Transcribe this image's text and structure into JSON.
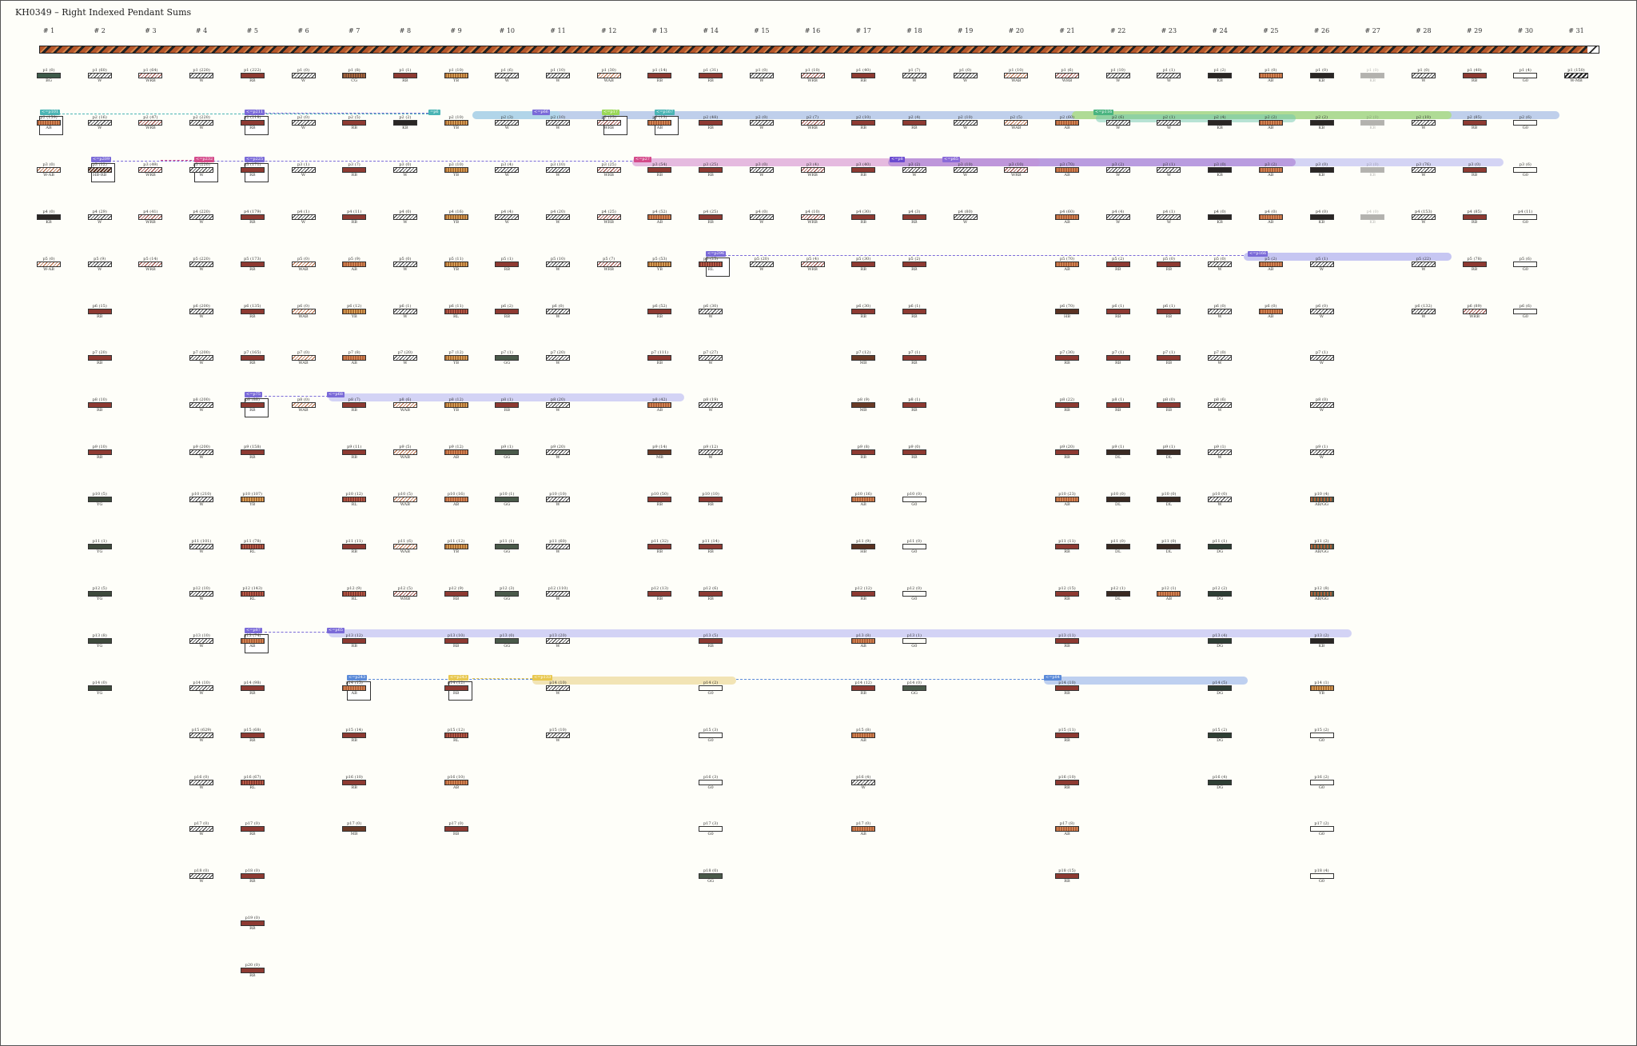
{
  "title": "KH0349 – Right Indexed Pendant Sums",
  "columns": [
    "# 1",
    "# 2",
    "# 3",
    "# 4",
    "# 5",
    "# 6",
    "# 7",
    "# 8",
    "# 9",
    "# 10",
    "# 11",
    "# 12",
    "# 13",
    "# 14",
    "# 15",
    "# 16",
    "# 17",
    "# 18",
    "# 19",
    "# 20",
    "# 21",
    "# 22",
    "# 23",
    "# 24",
    "# 25",
    "# 26",
    "# 27",
    "# 28",
    "# 29",
    "# 30",
    "# 31"
  ],
  "colors": {
    "main_cord": "#b4562a",
    "link_purple": "#7a6ad8",
    "link_pink": "#d44a8a",
    "link_teal": "#4ab4b4",
    "link_blue": "#5a8ad8",
    "link_green": "#9ad858",
    "link_gold": "#e8c850"
  },
  "subsidiary_tags": [
    {
      "text": "<=p101",
      "color": "#4ab4b4"
    },
    {
      "text": "<=p211",
      "color": "#7a6ad8"
    },
    {
      "text": "=p6",
      "color": "#4ab4b4"
    },
    {
      "text": "<=p66",
      "color": "#7a6ad8"
    },
    {
      "text": "<=p17",
      "color": "#9ad858"
    },
    {
      "text": "<=p167",
      "color": "#4ab4b4"
    },
    {
      "text": "<=p116",
      "color": "#4ab480"
    },
    {
      "text": "<=p209",
      "color": "#7a6ad8"
    },
    {
      "text": "<=p232",
      "color": "#d44a8a"
    },
    {
      "text": "<=p225",
      "color": "#7a6ad8"
    },
    {
      "text": "<=p27",
      "color": "#d44a8a"
    },
    {
      "text": "<=p8",
      "color": "#6a4ad0"
    },
    {
      "text": "<=p65",
      "color": "#8a6ad8"
    },
    {
      "text": "<=p296",
      "color": "#7a6ad8"
    },
    {
      "text": "<=p166",
      "color": "#7a6ad8"
    },
    {
      "text": "<=p75",
      "color": "#7a6ad8"
    },
    {
      "text": "<=p68",
      "color": "#7a6ad8"
    },
    {
      "text": "<=p87",
      "color": "#7a6ad8"
    },
    {
      "text": "<=p65",
      "color": "#7a6ad8"
    },
    {
      "text": "<=p243",
      "color": "#5a8ad8"
    },
    {
      "text": "<=p243",
      "color": "#e8c850"
    },
    {
      "text": "<=p133",
      "color": "#e8c850"
    },
    {
      "text": "<=p84",
      "color": "#5a8ad8"
    }
  ],
  "pendants": [
    [
      [
        "p1 (0)",
        "BG"
      ],
      [
        "p2 (159)",
        "AB"
      ],
      [
        "p3 (0)",
        "W-AB"
      ],
      [
        "p4 (0)",
        "KB"
      ],
      [
        "p5 (0)",
        "W-AB"
      ]
    ],
    [
      [
        "p1 (60)",
        "W"
      ],
      [
        "p2 (16)",
        "W"
      ],
      [
        "p3 (12)",
        "HB-RB"
      ],
      [
        "p4 (29)",
        "W"
      ],
      [
        "p5 (9)",
        "W"
      ],
      [
        "p6 (15)",
        "RB"
      ],
      [
        "p7 (20)",
        "RB"
      ],
      [
        "p8 (10)",
        "RB"
      ],
      [
        "p9 (10)",
        "RB"
      ],
      [
        "p10 (5)",
        "YG"
      ],
      [
        "p11 (1)",
        "YG"
      ],
      [
        "p12 (5)",
        "YG"
      ],
      [
        "p13 (8)",
        "YG"
      ],
      [
        "p14 (0)",
        "YG"
      ]
    ],
    [
      [
        "p1 (64)",
        "WRB"
      ],
      [
        "p2 (47)",
        "WRB"
      ],
      [
        "p3 (49)",
        "WRB"
      ],
      [
        "p4 (41)",
        "WRB"
      ],
      [
        "p5 (14)",
        "WRB"
      ]
    ],
    [
      [
        "p1 (220)",
        "W"
      ],
      [
        "p2 (220)",
        "W"
      ],
      [
        "p3 (220)",
        "W"
      ],
      [
        "p4 (220)",
        "W"
      ],
      [
        "p5 (220)",
        "W"
      ],
      [
        "p6 (200)",
        "W"
      ],
      [
        "p7 (200)",
        "W"
      ],
      [
        "p8 (200)",
        "W"
      ],
      [
        "p9 (200)",
        "W"
      ],
      [
        "p10 (210)",
        "W"
      ],
      [
        "p11 (101)",
        "W"
      ],
      [
        "p12 (10)",
        "W"
      ],
      [
        "p13 (10)",
        "W"
      ],
      [
        "p14 (10)",
        "W"
      ],
      [
        "p15 (629)",
        "W"
      ],
      [
        "p16 (0)",
        "W"
      ],
      [
        "p17 (0)",
        "W"
      ],
      [
        "p18 (0)",
        "W"
      ]
    ],
    [
      [
        "p1 (222)",
        "RB"
      ],
      [
        "p2 (218)",
        "RB"
      ],
      [
        "p3 (171)",
        "RB"
      ],
      [
        "p4 (179)",
        "RB"
      ],
      [
        "p5 (173)",
        "RB"
      ],
      [
        "p6 (135)",
        "RB"
      ],
      [
        "p7 (165)",
        "RB"
      ],
      [
        "p8 (88)",
        "RB"
      ],
      [
        "p9 (158)",
        "RB"
      ],
      [
        "p10 (107)",
        "YB"
      ],
      [
        "p11 (78)",
        "RL"
      ],
      [
        "p12 (143)",
        "RL"
      ],
      [
        "p13 (74)",
        "AB"
      ],
      [
        "p14 (98)",
        "RB"
      ],
      [
        "p15 (68)",
        "RB"
      ],
      [
        "p16 (67)",
        "RL"
      ],
      [
        "p17 (0)",
        "RB"
      ],
      [
        "p18 (0)",
        "RB"
      ],
      [
        "p19 (0)",
        "RB"
      ],
      [
        "p20 (0)",
        "RB"
      ]
    ],
    [
      [
        "p1 (0)",
        "W"
      ],
      [
        "p2 (0)",
        "W"
      ],
      [
        "p3 (1)",
        "W"
      ],
      [
        "p4 (1)",
        "W"
      ],
      [
        "p5 (0)",
        "WAB"
      ],
      [
        "p6 (0)",
        "WAB"
      ],
      [
        "p7 (0)",
        "WAB"
      ],
      [
        "p8 (0)",
        "WAB"
      ]
    ],
    [
      [
        "p1 (8)",
        "CG"
      ],
      [
        "p2 (5)",
        "RB"
      ],
      [
        "p3 (7)",
        "RB"
      ],
      [
        "p4 (11)",
        "RB"
      ],
      [
        "p5 (9)",
        "AB"
      ],
      [
        "p6 (12)",
        "YB"
      ],
      [
        "p7 (8)",
        "AB"
      ],
      [
        "p8 (7)",
        "RB"
      ],
      [
        "p9 (11)",
        "RB"
      ],
      [
        "p10 (12)",
        "RL"
      ],
      [
        "p11 (11)",
        "RB"
      ],
      [
        "p12 (9)",
        "RL"
      ],
      [
        "p13 (12)",
        "RB"
      ],
      [
        "p14 (15)",
        "AB"
      ],
      [
        "p15 (14)",
        "RB"
      ],
      [
        "p16 (10)",
        "RB"
      ],
      [
        "p17 (0)",
        "MB"
      ]
    ],
    [
      [
        "p1 (1)",
        "RB"
      ],
      [
        "p2 (2)",
        "KB"
      ],
      [
        "p3 (0)",
        "W"
      ],
      [
        "p4 (0)",
        "W"
      ],
      [
        "p5 (0)",
        "W"
      ],
      [
        "p6 (1)",
        "W"
      ],
      [
        "p7 (20)",
        "W"
      ],
      [
        "p8 (6)",
        "WAB"
      ],
      [
        "p9 (5)",
        "WAB"
      ],
      [
        "p10 (5)",
        "WAB"
      ],
      [
        "p11 (6)",
        "WAB"
      ],
      [
        "p12 (5)",
        "WRB"
      ]
    ],
    [
      [
        "p1 (10)",
        "YB"
      ],
      [
        "p2 (10)",
        "YB"
      ],
      [
        "p3 (10)",
        "YB"
      ],
      [
        "p4 (16)",
        "YB"
      ],
      [
        "p5 (11)",
        "YB"
      ],
      [
        "p6 (11)",
        "RL"
      ],
      [
        "p7 (12)",
        "YB"
      ],
      [
        "p8 (12)",
        "YB"
      ],
      [
        "p9 (12)",
        "AB"
      ],
      [
        "p10 (16)",
        "AB"
      ],
      [
        "p11 (12)",
        "YB"
      ],
      [
        "p12 (9)",
        "RB"
      ],
      [
        "p13 (10)",
        "RB"
      ],
      [
        "p14 (12)",
        "RB"
      ],
      [
        "p15 (12)",
        "RL"
      ],
      [
        "p16 (10)",
        "AB"
      ],
      [
        "p17 (0)",
        "RB"
      ]
    ],
    [
      [
        "p1 (6)",
        "W"
      ],
      [
        "p2 (3)",
        "W"
      ],
      [
        "p3 (4)",
        "W"
      ],
      [
        "p4 (4)",
        "W"
      ],
      [
        "p5 (1)",
        "RB"
      ],
      [
        "p6 (2)",
        "RB"
      ],
      [
        "p7 (1)",
        "GG"
      ],
      [
        "p8 (1)",
        "RB"
      ],
      [
        "p9 (1)",
        "GG"
      ],
      [
        "p10 (1)",
        "GG"
      ],
      [
        "p11 (1)",
        "GG"
      ],
      [
        "p12 (3)",
        "GG"
      ],
      [
        "p13 (0)",
        "GG"
      ]
    ],
    [
      [
        "p1 (10)",
        "W"
      ],
      [
        "p2 (10)",
        "W"
      ],
      [
        "p3 (10)",
        "W"
      ],
      [
        "p4 (20)",
        "W"
      ],
      [
        "p5 (10)",
        "W"
      ],
      [
        "p6 (0)",
        "W"
      ],
      [
        "p7 (20)",
        "W"
      ],
      [
        "p8 (20)",
        "W"
      ],
      [
        "p9 (20)",
        "W"
      ],
      [
        "p10 (10)",
        "W"
      ],
      [
        "p11 (60)",
        "W"
      ],
      [
        "p12 (110)",
        "W"
      ],
      [
        "p13 (20)",
        "W"
      ],
      [
        "p14 (10)",
        "W"
      ],
      [
        "p15 (10)",
        "W"
      ]
    ],
    [
      [
        "p1 (30)",
        "WAB"
      ],
      [
        "p2 (25)",
        "WRB"
      ],
      [
        "p3 (25)",
        "WRB"
      ],
      [
        "p4 (25)",
        "WRB"
      ],
      [
        "p5 (7)",
        "WRB"
      ]
    ],
    [
      [
        "p1 (14)",
        "RB"
      ],
      [
        "p2 (13)",
        "AB"
      ],
      [
        "p3 (54)",
        "RB"
      ],
      [
        "p4 (52)",
        "AB"
      ],
      [
        "p5 (53)",
        "YB"
      ],
      [
        "p6 (52)",
        "RB"
      ],
      [
        "p7 (111)",
        "RB"
      ],
      [
        "p8 (42)",
        "AB"
      ],
      [
        "p9 (14)",
        "MB"
      ],
      [
        "p10 (50)",
        "RB"
      ],
      [
        "p11 (32)",
        "RB"
      ],
      [
        "p12 (13)",
        "RB"
      ]
    ],
    [
      [
        "p1 (31)",
        "RB"
      ],
      [
        "p2 (48)",
        "RB"
      ],
      [
        "p3 (25)",
        "RB"
      ],
      [
        "p4 (25)",
        "RB"
      ],
      [
        "p5 (25)",
        "RL"
      ],
      [
        "p6 (30)",
        "W"
      ],
      [
        "p7 (27)",
        "W"
      ],
      [
        "p8 (19)",
        "W"
      ],
      [
        "p9 (12)",
        "W"
      ],
      [
        "p10 (10)",
        "RB"
      ],
      [
        "p11 (14)",
        "RB"
      ],
      [
        "p12 (6)",
        "RB"
      ],
      [
        "p13 (5)",
        "RB"
      ],
      [
        "p14 (2)",
        "G0"
      ],
      [
        "p15 (3)",
        "G0"
      ],
      [
        "p16 (3)",
        "G0"
      ],
      [
        "p17 (3)",
        "G0"
      ],
      [
        "p18 (0)",
        "GG"
      ]
    ],
    [
      [
        "p1 (0)",
        "W"
      ],
      [
        "p2 (0)",
        "W"
      ],
      [
        "p3 (0)",
        "W"
      ],
      [
        "p4 (0)",
        "W"
      ],
      [
        "p5 (20)",
        "W"
      ]
    ],
    [
      [
        "p1 (10)",
        "WRB"
      ],
      [
        "p2 (7)",
        "WRB"
      ],
      [
        "p3 (4)",
        "WRB"
      ],
      [
        "p4 (10)",
        "WRB"
      ],
      [
        "p5 (4)",
        "WRB"
      ]
    ],
    [
      [
        "p1 (40)",
        "RB"
      ],
      [
        "p2 (10)",
        "RB"
      ],
      [
        "p3 (40)",
        "RB"
      ],
      [
        "p4 (30)",
        "RB"
      ],
      [
        "p5 (30)",
        "RB"
      ],
      [
        "p6 (30)",
        "RB"
      ],
      [
        "p7 (12)",
        "MB"
      ],
      [
        "p8 (9)",
        "MB"
      ],
      [
        "p9 (8)",
        "RB"
      ],
      [
        "p10 (16)",
        "AB"
      ],
      [
        "p11 (9)",
        "HB"
      ],
      [
        "p12 (12)",
        "RB"
      ],
      [
        "p13 (8)",
        "AB"
      ],
      [
        "p14 (12)",
        "RB"
      ],
      [
        "p15 (8)",
        "AB"
      ],
      [
        "p16 (4)",
        "W"
      ],
      [
        "p17 (0)",
        "AB"
      ]
    ],
    [
      [
        "p1 (7)",
        "W"
      ],
      [
        "p2 (4)",
        "RB"
      ],
      [
        "p3 (2)",
        "W"
      ],
      [
        "p4 (3)",
        "RB"
      ],
      [
        "p5 (2)",
        "RB"
      ],
      [
        "p6 (1)",
        "RB"
      ],
      [
        "p7 (1)",
        "RB"
      ],
      [
        "p8 (1)",
        "RB"
      ],
      [
        "p9 (0)",
        "RB"
      ],
      [
        "p10 (0)",
        "G0"
      ],
      [
        "p11 (0)",
        "G0"
      ],
      [
        "p12 (0)",
        "G0"
      ],
      [
        "p13 (1)",
        "G0"
      ],
      [
        "p14 (0)",
        "GG"
      ]
    ],
    [
      [
        "p1 (0)",
        "W"
      ],
      [
        "p2 (10)",
        "W"
      ],
      [
        "p3 (10)",
        "W"
      ],
      [
        "p4 (80)",
        "W"
      ]
    ],
    [
      [
        "p1 (10)",
        "WAB"
      ],
      [
        "p2 (5)",
        "WAB"
      ],
      [
        "p3 (10)",
        "WRB"
      ]
    ],
    [
      [
        "p1 (6)",
        "WRB"
      ],
      [
        "p2 (60)",
        "AB"
      ],
      [
        "p3 (70)",
        "AB"
      ],
      [
        "p4 (60)",
        "AB"
      ],
      [
        "p5 (70)",
        "AB"
      ],
      [
        "p6 (70)",
        "HB"
      ],
      [
        "p7 (30)",
        "RB"
      ],
      [
        "p8 (22)",
        "RB"
      ],
      [
        "p9 (20)",
        "RB"
      ],
      [
        "p10 (23)",
        "AB"
      ],
      [
        "p11 (11)",
        "RB"
      ],
      [
        "p12 (15)",
        "RB"
      ],
      [
        "p13 (11)",
        "RB"
      ],
      [
        "p14 (10)",
        "RB"
      ],
      [
        "p15 (11)",
        "RB"
      ],
      [
        "p16 (10)",
        "RB"
      ],
      [
        "p17 (8)",
        "AB"
      ],
      [
        "p18 (15)",
        "RB"
      ]
    ],
    [
      [
        "p1 (10)",
        "W"
      ],
      [
        "p2 (6)",
        "W"
      ],
      [
        "p3 (2)",
        "W"
      ],
      [
        "p4 (4)",
        "W"
      ],
      [
        "p5 (2)",
        "RB"
      ],
      [
        "p6 (1)",
        "RB"
      ],
      [
        "p7 (1)",
        "RB"
      ],
      [
        "p8 (1)",
        "RB"
      ],
      [
        "p9 (1)",
        "DL"
      ],
      [
        "p10 (0)",
        "DL"
      ],
      [
        "p11 (0)",
        "DL"
      ],
      [
        "p12 (1)",
        "DL"
      ]
    ],
    [
      [
        "p1 (1)",
        "W"
      ],
      [
        "p2 (1)",
        "W"
      ],
      [
        "p3 (1)",
        "W"
      ],
      [
        "p4 (1)",
        "W"
      ],
      [
        "p5 (0)",
        "RB"
      ],
      [
        "p6 (1)",
        "RB"
      ],
      [
        "p7 (1)",
        "RB"
      ],
      [
        "p8 (0)",
        "RB"
      ],
      [
        "p9 (1)",
        "DL"
      ],
      [
        "p10 (0)",
        "DL"
      ],
      [
        "p11 (0)",
        "DL"
      ],
      [
        "p12 (1)",
        "AB"
      ]
    ],
    [
      [
        "p1 (2)",
        "KB"
      ],
      [
        "p2 (4)",
        "KB"
      ],
      [
        "p3 (0)",
        "KB"
      ],
      [
        "p4 (0)",
        "KB"
      ],
      [
        "p5 (0)",
        "W"
      ],
      [
        "p6 (0)",
        "W"
      ],
      [
        "p7 (0)",
        "W"
      ],
      [
        "p8 (6)",
        "W"
      ],
      [
        "p9 (1)",
        "W"
      ],
      [
        "p10 (0)",
        "W"
      ],
      [
        "p11 (1)",
        "DG"
      ],
      [
        "p12 (2)",
        "DG"
      ],
      [
        "p13 (4)",
        "DG"
      ],
      [
        "p14 (5)",
        "DG"
      ],
      [
        "p15 (2)",
        "DG"
      ],
      [
        "p16 (4)",
        "DG"
      ]
    ],
    [
      [
        "p1 (0)",
        "AB"
      ],
      [
        "p2 (2)",
        "AB"
      ],
      [
        "p3 (2)",
        "AB"
      ],
      [
        "p4 (0)",
        "AB"
      ],
      [
        "p5 (2)",
        "AB"
      ],
      [
        "p6 (0)",
        "AB"
      ]
    ],
    [
      [
        "p1 (0)",
        "KB"
      ],
      [
        "p2 (2)",
        "KB"
      ],
      [
        "p3 (0)",
        "KB"
      ],
      [
        "p4 (0)",
        "KB"
      ],
      [
        "p5 (1)",
        "W"
      ],
      [
        "p6 (0)",
        "W"
      ],
      [
        "p7 (1)",
        "W"
      ],
      [
        "p8 (0)",
        "W"
      ],
      [
        "p9 (1)",
        "W"
      ],
      [
        "p10 (4)",
        "AB/GG"
      ],
      [
        "p11 (2)",
        "AB/GG"
      ],
      [
        "p12 (8)",
        "AB/GG"
      ],
      [
        "p13 (2)",
        "KB"
      ],
      [
        "p14 (1)",
        "YB"
      ],
      [
        "p15 (2)",
        "G0"
      ],
      [
        "p16 (2)",
        "G0"
      ],
      [
        "p17 (2)",
        "G0"
      ],
      [
        "p18 (4)",
        "G0"
      ]
    ],
    [
      [
        "p1 (0)",
        "KB",
        "faded"
      ],
      [
        "p2 (0)",
        "KB",
        "faded"
      ],
      [
        "p3 (0)",
        "KB",
        "faded"
      ],
      [
        "p4 (0)",
        "KB",
        "faded"
      ]
    ],
    [
      [
        "p1 (0)",
        "W"
      ],
      [
        "p2 (10)",
        "W"
      ],
      [
        "p3 (76)",
        "W"
      ],
      [
        "p4 (153)",
        "W"
      ],
      [
        "p5 (22)",
        "W"
      ],
      [
        "p6 (132)",
        "W"
      ]
    ],
    [
      [
        "p1 (40)",
        "RB"
      ],
      [
        "p2 (85)",
        "RB"
      ],
      [
        "p3 (0)",
        "RB"
      ],
      [
        "p4 (85)",
        "RB"
      ],
      [
        "p5 (78)",
        "RB"
      ],
      [
        "p6 (89)",
        "WRB"
      ]
    ],
    [
      [
        "p1 (4)",
        "G0"
      ],
      [
        "p2 (6)",
        "G0"
      ],
      [
        "p3 (6)",
        "G0"
      ],
      [
        "p4 (11)",
        "G0"
      ],
      [
        "p5 (6)",
        "G0"
      ],
      [
        "p6 (6)",
        "G0"
      ]
    ],
    [
      [
        "p1 (150)",
        "W-MB"
      ]
    ]
  ]
}
